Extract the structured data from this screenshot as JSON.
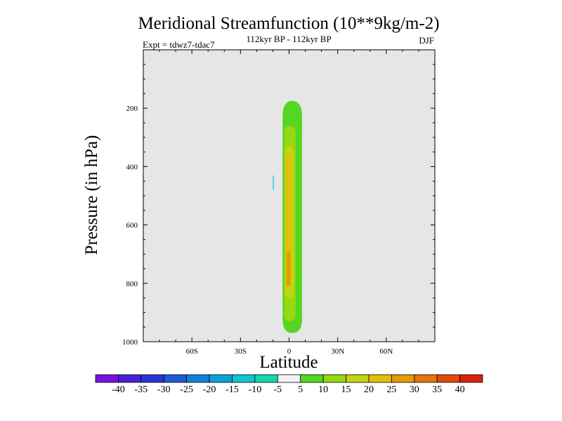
{
  "chart_data": {
    "type": "heatmap",
    "title": "Meridional Streamfunction (10**9kg/m-2)",
    "subtitle_center": "112kyr BP - 112kyr BP",
    "subtitle_left": "Expt = tdwz7-tdac7",
    "subtitle_right": "DJF",
    "xlabel": "Latitude",
    "ylabel": "Pressure (in hPa)",
    "xlim": [
      -90,
      90
    ],
    "ylim": [
      1000,
      0
    ],
    "y_reversed": true,
    "background_color": "#e6e6e6",
    "x_ticks": [
      {
        "value": -60,
        "label": "60S"
      },
      {
        "value": -30,
        "label": "30S"
      },
      {
        "value": 0,
        "label": "0"
      },
      {
        "value": 30,
        "label": "30N"
      },
      {
        "value": 60,
        "label": "60N"
      }
    ],
    "y_ticks": [
      {
        "value": 200,
        "label": "200"
      },
      {
        "value": 400,
        "label": "400"
      },
      {
        "value": 600,
        "label": "600"
      },
      {
        "value": 800,
        "label": "800"
      },
      {
        "value": 1000,
        "label": "1000"
      }
    ],
    "contour_levels": [
      {
        "value": 5,
        "lat": [
          -4,
          8
        ],
        "p": [
          175,
          970
        ]
      },
      {
        "value": 10,
        "lat": [
          -3,
          4
        ],
        "p": [
          260,
          930
        ]
      },
      {
        "value": 15,
        "lat": [
          -2.5,
          3
        ],
        "p": [
          330,
          850
        ]
      },
      {
        "value": 20,
        "lat": [
          -2.2,
          1.5
        ],
        "p": [
          360,
          810
        ]
      },
      {
        "value": 25,
        "lat": [
          -1.5,
          0.8
        ],
        "p": [
          690,
          810
        ]
      },
      {
        "value": -10,
        "lat": [
          -10,
          -9.5
        ],
        "p": [
          430,
          480
        ]
      }
    ],
    "colorbar": {
      "labels": [
        "-40",
        "-35",
        "-30",
        "-25",
        "-20",
        "-15",
        "-10",
        "-5",
        "5",
        "10",
        "15",
        "20",
        "25",
        "30",
        "35",
        "40"
      ],
      "colors": [
        "#7a10e0",
        "#4b1fd6",
        "#2a35d8",
        "#1a5ad8",
        "#1180d8",
        "#0aa3d8",
        "#10c4d0",
        "#12d8b0",
        "#f2f2f2",
        "#55d622",
        "#98d812",
        "#c4d410",
        "#e0c00a",
        "#e49a0a",
        "#e4740c",
        "#e04a0c",
        "#d8200e"
      ]
    }
  }
}
